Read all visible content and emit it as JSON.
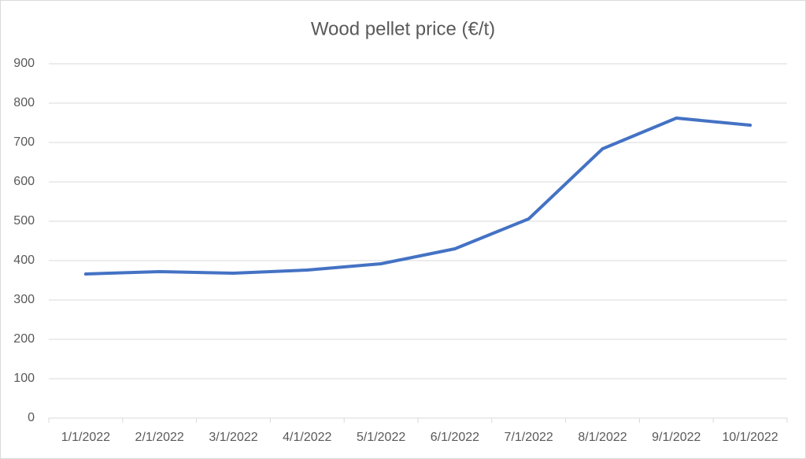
{
  "chart_data": {
    "type": "line",
    "title": "Wood pellet price (€/t)",
    "categories": [
      "1/1/2022",
      "2/1/2022",
      "3/1/2022",
      "4/1/2022",
      "5/1/2022",
      "6/1/2022",
      "7/1/2022",
      "8/1/2022",
      "9/1/2022",
      "10/1/2022"
    ],
    "values": [
      366,
      372,
      368,
      376,
      392,
      430,
      506,
      684,
      762,
      744
    ],
    "color": "#4472c4",
    "ylim": [
      0,
      900
    ],
    "yticks": [
      0,
      100,
      200,
      300,
      400,
      500,
      600,
      700,
      800,
      900
    ],
    "grid": true
  }
}
